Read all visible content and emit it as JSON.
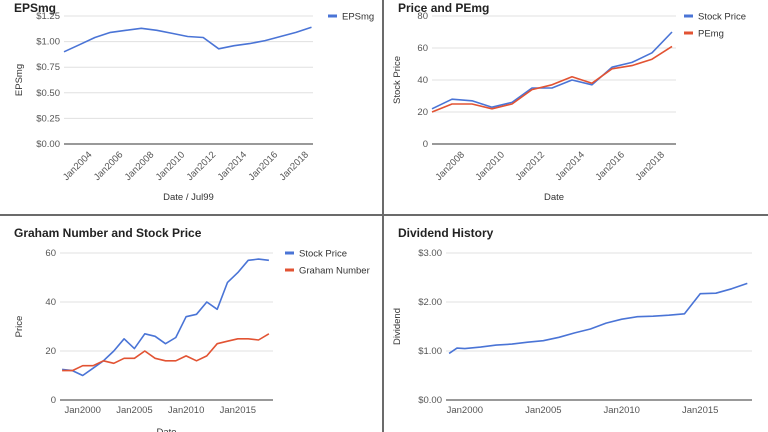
{
  "chart_data": [
    {
      "type": "line",
      "title": "EPSmg",
      "xlabel": "Date / Jul99",
      "ylabel": "EPSmg",
      "xtick_labels": [
        "Jan2004",
        "Jan2006",
        "Jan2008",
        "Jan2010",
        "Jan2012",
        "Jan2014",
        "Jan2016",
        "Jan2018"
      ],
      "ytick_labels": [
        "$0.00",
        "$0.25",
        "$0.50",
        "$0.75",
        "$1.00",
        "$1.25"
      ],
      "xlim": [
        2003,
        2019.1
      ],
      "ylim": [
        0,
        1.25
      ],
      "legend_position": "top-right",
      "grid": true,
      "series": [
        {
          "name": "EPSmg",
          "color": "#4a74d6",
          "x": [
            2003,
            2004,
            2005,
            2006,
            2007,
            2008,
            2009,
            2010,
            2011,
            2012,
            2013,
            2014,
            2015,
            2016,
            2017,
            2018,
            2019
          ],
          "y": [
            0.9,
            0.97,
            1.04,
            1.09,
            1.11,
            1.13,
            1.11,
            1.08,
            1.05,
            1.04,
            0.93,
            0.96,
            0.98,
            1.01,
            1.05,
            1.09,
            1.14
          ]
        }
      ]
    },
    {
      "type": "line",
      "title": "Price and PEmg",
      "xlabel": "Date",
      "ylabel": "Stock Price",
      "xtick_labels": [
        "Jan2008",
        "Jan2010",
        "Jan2012",
        "Jan2014",
        "Jan2016",
        "Jan2018"
      ],
      "ytick_labels": [
        "0",
        "20",
        "40",
        "60",
        "80"
      ],
      "xlim": [
        2007,
        2019.2
      ],
      "ylim": [
        0,
        80
      ],
      "legend_position": "top-right",
      "grid": true,
      "series": [
        {
          "name": "Stock Price",
          "color": "#4a74d6",
          "x": [
            2007,
            2008,
            2009,
            2010,
            2011,
            2012,
            2013,
            2014,
            2015,
            2016,
            2017,
            2018,
            2019
          ],
          "y": [
            22,
            28,
            27,
            23,
            26,
            35,
            35,
            40,
            37,
            48,
            51,
            57,
            70
          ]
        },
        {
          "name": "PEmg",
          "color": "#e25333",
          "x": [
            2007,
            2008,
            2009,
            2010,
            2011,
            2012,
            2013,
            2014,
            2015,
            2016,
            2017,
            2018,
            2019
          ],
          "y": [
            20,
            25,
            25,
            22,
            25,
            34,
            37,
            42,
            38,
            47,
            49,
            53,
            61
          ]
        }
      ]
    },
    {
      "type": "line",
      "title": "Graham Number and Stock Price",
      "xlabel": "Date",
      "ylabel": "Price",
      "xtick_labels": [
        "Jan2000",
        "Jan2005",
        "Jan2010",
        "Jan2015"
      ],
      "ytick_labels": [
        "0",
        "20",
        "40",
        "60"
      ],
      "xlim": [
        1997.8,
        2018.4
      ],
      "ylim": [
        0,
        60
      ],
      "legend_position": "top-right",
      "grid": true,
      "series": [
        {
          "name": "Stock Price",
          "color": "#4a74d6",
          "x": [
            1998,
            1999,
            2000,
            2001,
            2002,
            2003,
            2004,
            2005,
            2006,
            2007,
            2008,
            2009,
            2010,
            2011,
            2012,
            2013,
            2014,
            2015,
            2016,
            2017,
            2018
          ],
          "y": [
            12.5,
            12,
            10,
            13,
            16,
            20,
            25,
            21,
            27,
            26,
            23,
            25.5,
            34,
            35,
            40,
            37,
            48,
            52,
            57,
            57.5,
            57
          ]
        },
        {
          "name": "Graham Number",
          "color": "#e25333",
          "x": [
            1998,
            1999,
            2000,
            2001,
            2002,
            2003,
            2004,
            2005,
            2006,
            2007,
            2008,
            2009,
            2010,
            2011,
            2012,
            2013,
            2014,
            2015,
            2016,
            2017,
            2018
          ],
          "y": [
            12,
            12,
            14,
            14,
            16,
            15,
            17,
            17,
            20,
            17,
            16,
            16,
            18,
            16,
            18,
            23,
            24,
            25,
            25,
            24.5,
            27
          ]
        }
      ]
    },
    {
      "type": "line",
      "title": "Dividend History",
      "xlabel": "",
      "ylabel": "Dividend",
      "xtick_labels": [
        "Jan2000",
        "Jan2005",
        "Jan2010",
        "Jan2015"
      ],
      "ytick_labels": [
        "$0.00",
        "$1.00",
        "$2.00",
        "$3.00"
      ],
      "xlim": [
        1998.8,
        2018.3
      ],
      "ylim": [
        0,
        3
      ],
      "legend_position": "none",
      "grid": true,
      "series": [
        {
          "color": "#4a74d6",
          "x": [
            1999,
            1999.5,
            2000,
            2001,
            2002,
            2003,
            2004,
            2005,
            2006,
            2007,
            2008,
            2009,
            2010,
            2011,
            2012,
            2013,
            2014,
            2015,
            2016,
            2017,
            2018
          ],
          "y": [
            0.95,
            1.06,
            1.05,
            1.08,
            1.12,
            1.14,
            1.18,
            1.21,
            1.28,
            1.37,
            1.45,
            1.57,
            1.65,
            1.7,
            1.71,
            1.73,
            1.76,
            2.17,
            2.18,
            2.27,
            2.38
          ]
        }
      ]
    }
  ]
}
